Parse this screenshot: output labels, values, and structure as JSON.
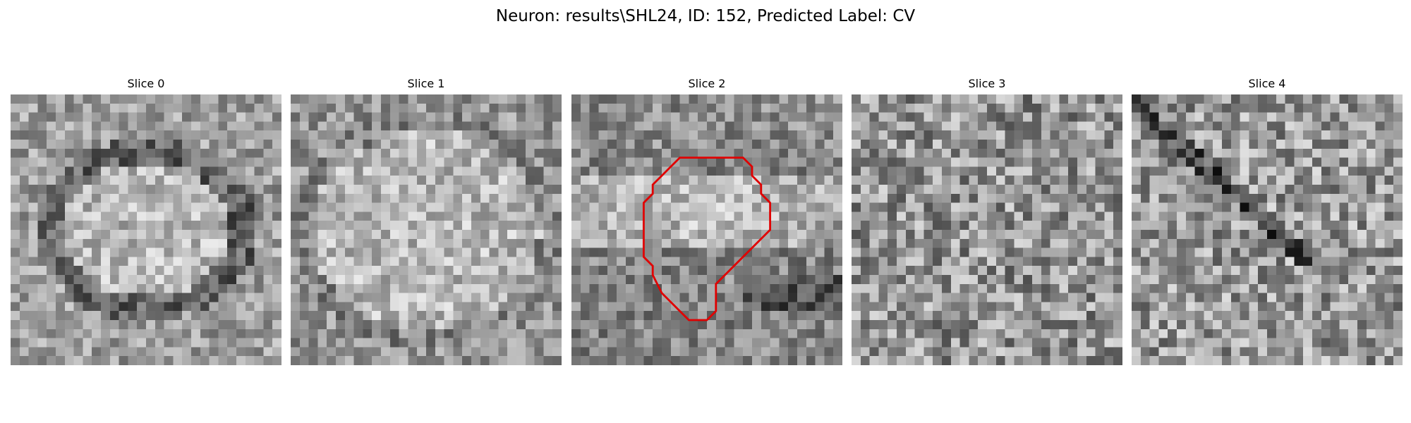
{
  "figure": {
    "title": "Neuron: results\\SHL24, ID: 152, Predicted Label: CV",
    "grid_size": 30
  },
  "panels": [
    {
      "title": "Slice 0",
      "pattern": "ring",
      "seed": 11,
      "has_contour": false
    },
    {
      "title": "Slice 1",
      "pattern": "blob",
      "seed": 23,
      "has_contour": false
    },
    {
      "title": "Slice 2",
      "pattern": "band",
      "seed": 37,
      "has_contour": true
    },
    {
      "title": "Slice 3",
      "pattern": "noise",
      "seed": 41,
      "has_contour": false
    },
    {
      "title": "Slice 4",
      "pattern": "streaks",
      "seed": 53,
      "has_contour": false
    }
  ],
  "contour": {
    "color": "#e00000",
    "points_grid": [
      [
        14,
        7
      ],
      [
        19,
        7
      ],
      [
        20,
        8
      ],
      [
        20,
        9
      ],
      [
        21,
        10
      ],
      [
        21,
        11
      ],
      [
        22,
        12
      ],
      [
        22,
        15
      ],
      [
        19,
        18
      ],
      [
        16,
        21
      ],
      [
        16,
        24
      ],
      [
        15,
        25
      ],
      [
        13,
        25
      ],
      [
        12,
        24
      ],
      [
        10,
        22
      ],
      [
        9,
        20
      ],
      [
        9,
        19
      ],
      [
        8,
        18
      ],
      [
        8,
        12
      ],
      [
        9,
        11
      ],
      [
        9,
        10
      ],
      [
        10,
        9
      ],
      [
        11,
        8
      ],
      [
        12,
        7
      ],
      [
        13,
        7
      ]
    ]
  }
}
